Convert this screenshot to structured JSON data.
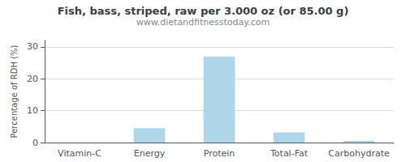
{
  "chart_data": {
    "type": "bar",
    "title": "Fish, bass, striped, raw per 3.000 oz (or 85.00 g)",
    "subtitle": "www.dietandfitnesstoday.com",
    "categories": [
      "Vitamin-C",
      "Energy",
      "Protein",
      "Total-Fat",
      "Carbohydrate"
    ],
    "values": [
      0,
      4.5,
      27,
      3.2,
      0.5
    ],
    "color": "#aed6e8",
    "ylabel": "Percentage of RDH (%)",
    "ylim": [
      0,
      32
    ],
    "yticks": [
      0,
      10,
      20,
      30
    ],
    "grid": true
  }
}
